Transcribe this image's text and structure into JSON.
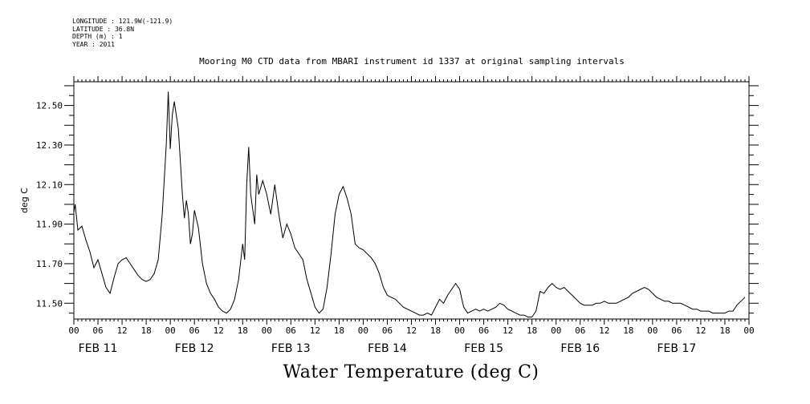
{
  "meta": {
    "longitude": "LONGITUDE : 121.9W(-121.9)",
    "latitude": "LATITUDE : 36.8N",
    "depth": "DEPTH (m) : 1",
    "year": "YEAR : 2011"
  },
  "chart_data": {
    "type": "line",
    "title": "Mooring M0 CTD data from MBARI instrument id 1337 at original sampling intervals",
    "xlabel": "Water Temperature (deg C)",
    "ylabel": "deg C",
    "ylim": [
      11.42,
      12.62
    ],
    "yticks": [
      "11.50",
      "11.70",
      "11.90",
      "12.10",
      "12.30",
      "12.50"
    ],
    "xlim": [
      "2011-02-11T00:00",
      "2011-02-17T23:59"
    ],
    "hour_ticks": [
      "00",
      "06",
      "12",
      "18"
    ],
    "day_labels": [
      "FEB 11",
      "FEB 12",
      "FEB 13",
      "FEB 14",
      "FEB 15",
      "FEB 16",
      "FEB 17"
    ],
    "grid": false,
    "series": [
      {
        "points": [
          [
            "2011-02-11T00:00",
            11.96
          ],
          [
            "2011-02-11T00:20",
            12.0
          ],
          [
            "2011-02-11T01:00",
            11.87
          ],
          [
            "2011-02-11T02:00",
            11.89
          ],
          [
            "2011-02-11T03:00",
            11.82
          ],
          [
            "2011-02-11T04:00",
            11.76
          ],
          [
            "2011-02-11T05:00",
            11.68
          ],
          [
            "2011-02-11T06:00",
            11.72
          ],
          [
            "2011-02-11T07:00",
            11.65
          ],
          [
            "2011-02-11T08:00",
            11.58
          ],
          [
            "2011-02-11T09:00",
            11.55
          ],
          [
            "2011-02-11T10:00",
            11.63
          ],
          [
            "2011-02-11T11:00",
            11.7
          ],
          [
            "2011-02-11T12:00",
            11.72
          ],
          [
            "2011-02-11T13:00",
            11.73
          ],
          [
            "2011-02-11T14:00",
            11.7
          ],
          [
            "2011-02-11T15:00",
            11.67
          ],
          [
            "2011-02-11T16:00",
            11.64
          ],
          [
            "2011-02-11T17:00",
            11.62
          ],
          [
            "2011-02-11T18:00",
            11.61
          ],
          [
            "2011-02-11T19:00",
            11.62
          ],
          [
            "2011-02-11T20:00",
            11.65
          ],
          [
            "2011-02-11T21:00",
            11.72
          ],
          [
            "2011-02-11T22:00",
            11.95
          ],
          [
            "2011-02-11T23:00",
            12.3
          ],
          [
            "2011-02-11T23:30",
            12.57
          ],
          [
            "2011-02-12T00:00",
            12.28
          ],
          [
            "2011-02-12T00:30",
            12.45
          ],
          [
            "2011-02-12T01:00",
            12.52
          ],
          [
            "2011-02-12T02:00",
            12.38
          ],
          [
            "2011-02-12T03:00",
            12.05
          ],
          [
            "2011-02-12T03:30",
            11.93
          ],
          [
            "2011-02-12T04:00",
            12.02
          ],
          [
            "2011-02-12T04:30",
            11.95
          ],
          [
            "2011-02-12T05:00",
            11.8
          ],
          [
            "2011-02-12T05:30",
            11.85
          ],
          [
            "2011-02-12T06:00",
            11.97
          ],
          [
            "2011-02-12T07:00",
            11.88
          ],
          [
            "2011-02-12T08:00",
            11.7
          ],
          [
            "2011-02-12T09:00",
            11.6
          ],
          [
            "2011-02-12T10:00",
            11.55
          ],
          [
            "2011-02-12T11:00",
            11.52
          ],
          [
            "2011-02-12T12:00",
            11.48
          ],
          [
            "2011-02-12T13:00",
            11.46
          ],
          [
            "2011-02-12T14:00",
            11.45
          ],
          [
            "2011-02-12T15:00",
            11.47
          ],
          [
            "2011-02-12T16:00",
            11.52
          ],
          [
            "2011-02-12T17:00",
            11.62
          ],
          [
            "2011-02-12T18:00",
            11.8
          ],
          [
            "2011-02-12T18:30",
            11.72
          ],
          [
            "2011-02-12T19:00",
            12.1
          ],
          [
            "2011-02-12T19:30",
            12.29
          ],
          [
            "2011-02-12T20:00",
            12.05
          ],
          [
            "2011-02-12T21:00",
            11.9
          ],
          [
            "2011-02-12T21:30",
            12.15
          ],
          [
            "2011-02-12T22:00",
            12.05
          ],
          [
            "2011-02-12T23:00",
            12.12
          ],
          [
            "2011-02-13T00:00",
            12.05
          ],
          [
            "2011-02-13T01:00",
            11.95
          ],
          [
            "2011-02-13T02:00",
            12.1
          ],
          [
            "2011-02-13T03:00",
            11.95
          ],
          [
            "2011-02-13T04:00",
            11.83
          ],
          [
            "2011-02-13T05:00",
            11.9
          ],
          [
            "2011-02-13T06:00",
            11.85
          ],
          [
            "2011-02-13T07:00",
            11.78
          ],
          [
            "2011-02-13T08:00",
            11.75
          ],
          [
            "2011-02-13T09:00",
            11.72
          ],
          [
            "2011-02-13T10:00",
            11.62
          ],
          [
            "2011-02-13T11:00",
            11.55
          ],
          [
            "2011-02-13T12:00",
            11.48
          ],
          [
            "2011-02-13T13:00",
            11.45
          ],
          [
            "2011-02-13T14:00",
            11.47
          ],
          [
            "2011-02-13T15:00",
            11.58
          ],
          [
            "2011-02-13T16:00",
            11.75
          ],
          [
            "2011-02-13T17:00",
            11.95
          ],
          [
            "2011-02-13T18:00",
            12.05
          ],
          [
            "2011-02-13T19:00",
            12.09
          ],
          [
            "2011-02-13T20:00",
            12.03
          ],
          [
            "2011-02-13T21:00",
            11.95
          ],
          [
            "2011-02-13T22:00",
            11.8
          ],
          [
            "2011-02-13T23:00",
            11.78
          ],
          [
            "2011-02-14T00:00",
            11.77
          ],
          [
            "2011-02-14T01:00",
            11.75
          ],
          [
            "2011-02-14T02:00",
            11.73
          ],
          [
            "2011-02-14T03:00",
            11.7
          ],
          [
            "2011-02-14T04:00",
            11.65
          ],
          [
            "2011-02-14T05:00",
            11.58
          ],
          [
            "2011-02-14T06:00",
            11.54
          ],
          [
            "2011-02-14T07:00",
            11.53
          ],
          [
            "2011-02-14T08:00",
            11.52
          ],
          [
            "2011-02-14T09:00",
            11.5
          ],
          [
            "2011-02-14T10:00",
            11.48
          ],
          [
            "2011-02-14T11:00",
            11.47
          ],
          [
            "2011-02-14T12:00",
            11.46
          ],
          [
            "2011-02-14T13:00",
            11.45
          ],
          [
            "2011-02-14T14:00",
            11.44
          ],
          [
            "2011-02-14T15:00",
            11.44
          ],
          [
            "2011-02-14T16:00",
            11.45
          ],
          [
            "2011-02-14T17:00",
            11.44
          ],
          [
            "2011-02-14T18:00",
            11.48
          ],
          [
            "2011-02-14T19:00",
            11.52
          ],
          [
            "2011-02-14T20:00",
            11.5
          ],
          [
            "2011-02-14T21:00",
            11.54
          ],
          [
            "2011-02-14T22:00",
            11.57
          ],
          [
            "2011-02-14T23:00",
            11.6
          ],
          [
            "2011-02-15T00:00",
            11.57
          ],
          [
            "2011-02-15T01:00",
            11.48
          ],
          [
            "2011-02-15T02:00",
            11.45
          ],
          [
            "2011-02-15T03:00",
            11.46
          ],
          [
            "2011-02-15T04:00",
            11.47
          ],
          [
            "2011-02-15T05:00",
            11.46
          ],
          [
            "2011-02-15T06:00",
            11.47
          ],
          [
            "2011-02-15T07:00",
            11.46
          ],
          [
            "2011-02-15T08:00",
            11.47
          ],
          [
            "2011-02-15T09:00",
            11.48
          ],
          [
            "2011-02-15T10:00",
            11.5
          ],
          [
            "2011-02-15T11:00",
            11.49
          ],
          [
            "2011-02-15T12:00",
            11.47
          ],
          [
            "2011-02-15T13:00",
            11.46
          ],
          [
            "2011-02-15T14:00",
            11.45
          ],
          [
            "2011-02-15T15:00",
            11.44
          ],
          [
            "2011-02-15T16:00",
            11.44
          ],
          [
            "2011-02-15T17:00",
            11.43
          ],
          [
            "2011-02-15T18:00",
            11.43
          ],
          [
            "2011-02-15T19:00",
            11.46
          ],
          [
            "2011-02-15T20:00",
            11.56
          ],
          [
            "2011-02-15T21:00",
            11.55
          ],
          [
            "2011-02-15T22:00",
            11.58
          ],
          [
            "2011-02-15T23:00",
            11.6
          ],
          [
            "2011-02-16T00:00",
            11.58
          ],
          [
            "2011-02-16T01:00",
            11.57
          ],
          [
            "2011-02-16T02:00",
            11.58
          ],
          [
            "2011-02-16T03:00",
            11.56
          ],
          [
            "2011-02-16T04:00",
            11.54
          ],
          [
            "2011-02-16T05:00",
            11.52
          ],
          [
            "2011-02-16T06:00",
            11.5
          ],
          [
            "2011-02-16T07:00",
            11.49
          ],
          [
            "2011-02-16T08:00",
            11.49
          ],
          [
            "2011-02-16T09:00",
            11.49
          ],
          [
            "2011-02-16T10:00",
            11.5
          ],
          [
            "2011-02-16T11:00",
            11.5
          ],
          [
            "2011-02-16T12:00",
            11.51
          ],
          [
            "2011-02-16T13:00",
            11.5
          ],
          [
            "2011-02-16T14:00",
            11.5
          ],
          [
            "2011-02-16T15:00",
            11.5
          ],
          [
            "2011-02-16T16:00",
            11.51
          ],
          [
            "2011-02-16T17:00",
            11.52
          ],
          [
            "2011-02-16T18:00",
            11.53
          ],
          [
            "2011-02-16T19:00",
            11.55
          ],
          [
            "2011-02-16T20:00",
            11.56
          ],
          [
            "2011-02-16T21:00",
            11.57
          ],
          [
            "2011-02-16T22:00",
            11.58
          ],
          [
            "2011-02-16T23:00",
            11.57
          ],
          [
            "2011-02-17T00:00",
            11.55
          ],
          [
            "2011-02-17T01:00",
            11.53
          ],
          [
            "2011-02-17T02:00",
            11.52
          ],
          [
            "2011-02-17T03:00",
            11.51
          ],
          [
            "2011-02-17T04:00",
            11.51
          ],
          [
            "2011-02-17T05:00",
            11.5
          ],
          [
            "2011-02-17T06:00",
            11.5
          ],
          [
            "2011-02-17T07:00",
            11.5
          ],
          [
            "2011-02-17T08:00",
            11.49
          ],
          [
            "2011-02-17T09:00",
            11.48
          ],
          [
            "2011-02-17T10:00",
            11.47
          ],
          [
            "2011-02-17T11:00",
            11.47
          ],
          [
            "2011-02-17T12:00",
            11.46
          ],
          [
            "2011-02-17T13:00",
            11.46
          ],
          [
            "2011-02-17T14:00",
            11.46
          ],
          [
            "2011-02-17T15:00",
            11.45
          ],
          [
            "2011-02-17T16:00",
            11.45
          ],
          [
            "2011-02-17T17:00",
            11.45
          ],
          [
            "2011-02-17T18:00",
            11.45
          ],
          [
            "2011-02-17T19:00",
            11.46
          ],
          [
            "2011-02-17T20:00",
            11.46
          ],
          [
            "2011-02-17T21:00",
            11.49
          ],
          [
            "2011-02-17T22:00",
            11.51
          ],
          [
            "2011-02-17T23:00",
            11.53
          ]
        ]
      }
    ]
  }
}
